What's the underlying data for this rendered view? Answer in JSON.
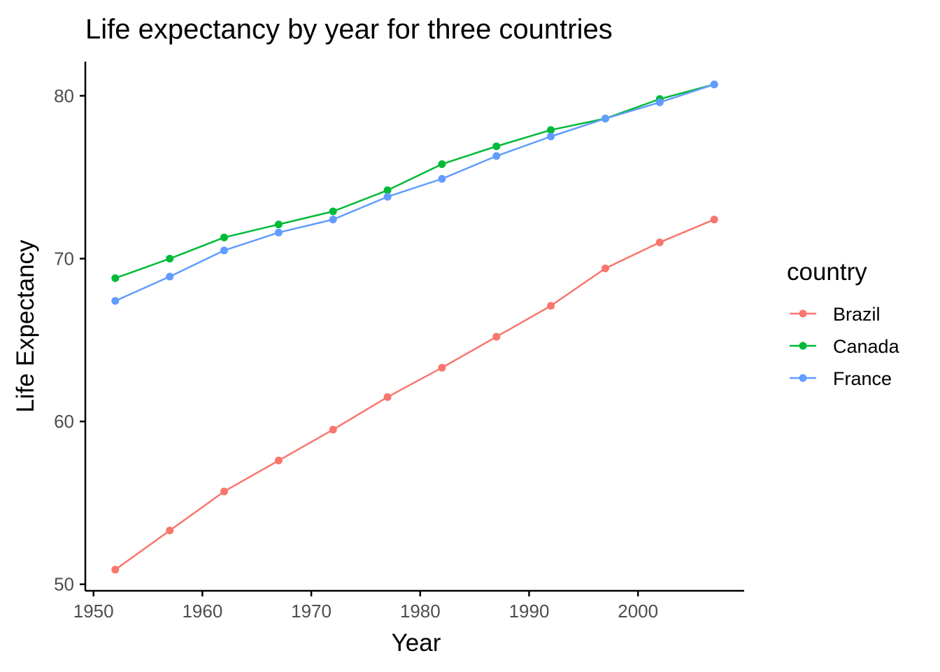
{
  "chart_data": {
    "type": "line",
    "title": "Life expectancy by year for three countries",
    "xlabel": "Year",
    "ylabel": "Life Expectancy",
    "xlim": [
      1949.25,
      2009.75
    ],
    "ylim": [
      49.6,
      82.1
    ],
    "x_ticks": [
      1950,
      1960,
      1970,
      1980,
      1990,
      2000
    ],
    "y_ticks": [
      50,
      60,
      70,
      80
    ],
    "grid": false,
    "legend_title": "country",
    "legend_position": "right",
    "x": [
      1952,
      1957,
      1962,
      1967,
      1972,
      1977,
      1982,
      1987,
      1992,
      1997,
      2002,
      2007
    ],
    "series": [
      {
        "name": "Brazil",
        "color": "#F8766D",
        "values": [
          50.9,
          53.3,
          55.7,
          57.6,
          59.5,
          61.5,
          63.3,
          65.2,
          67.1,
          69.4,
          71.0,
          72.4
        ]
      },
      {
        "name": "Canada",
        "color": "#00BA38",
        "values": [
          68.8,
          70.0,
          71.3,
          72.1,
          72.9,
          74.2,
          75.8,
          76.9,
          77.9,
          78.6,
          79.8,
          80.7
        ]
      },
      {
        "name": "France",
        "color": "#619CFF",
        "values": [
          67.4,
          68.9,
          70.5,
          71.6,
          72.4,
          73.8,
          74.9,
          76.3,
          77.5,
          78.6,
          79.6,
          80.7
        ]
      }
    ]
  }
}
